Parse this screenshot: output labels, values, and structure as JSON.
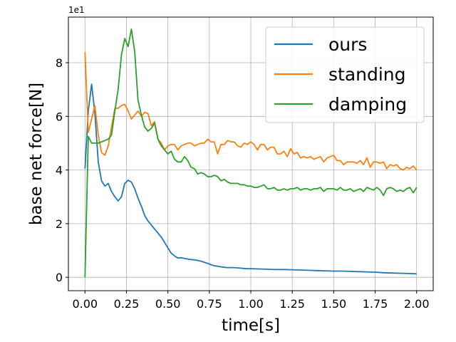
{
  "chart_data": {
    "type": "line",
    "xlabel": "time[s]",
    "ylabel": "base net force[N]",
    "y_offset_label": "1e1",
    "xlim": [
      -0.1,
      2.1
    ],
    "ylim": [
      -0.5,
      9.7
    ],
    "xticks": [
      0.0,
      0.25,
      0.5,
      0.75,
      1.0,
      1.25,
      1.5,
      1.75,
      2.0
    ],
    "xtick_labels": [
      "0.00",
      "0.25",
      "0.50",
      "0.75",
      "1.00",
      "1.25",
      "1.50",
      "1.75",
      "2.00"
    ],
    "yticks": [
      0,
      2,
      4,
      6,
      8
    ],
    "ytick_labels": [
      "0",
      "2",
      "4",
      "6",
      "8"
    ],
    "grid": true,
    "legend_position": "top-right",
    "series": [
      {
        "name": "ours",
        "color": "#1f77b4",
        "x": [
          0.0,
          0.02,
          0.04,
          0.06,
          0.08,
          0.1,
          0.12,
          0.14,
          0.16,
          0.18,
          0.2,
          0.22,
          0.24,
          0.26,
          0.28,
          0.3,
          0.32,
          0.34,
          0.36,
          0.38,
          0.4,
          0.42,
          0.44,
          0.46,
          0.48,
          0.5,
          0.52,
          0.54,
          0.56,
          0.58,
          0.6,
          0.62,
          0.64,
          0.66,
          0.68,
          0.7,
          0.72,
          0.74,
          0.76,
          0.78,
          0.8,
          0.82,
          0.84,
          0.86,
          0.88,
          0.9,
          0.92,
          0.94,
          0.96,
          0.98,
          1.0,
          1.05,
          1.1,
          1.15,
          1.2,
          1.25,
          1.3,
          1.35,
          1.4,
          1.45,
          1.5,
          1.55,
          1.6,
          1.65,
          1.7,
          1.75,
          1.8,
          1.85,
          1.9,
          1.95,
          2.0
        ],
        "y": [
          4.05,
          6.2,
          7.2,
          6.1,
          4.3,
          3.6,
          3.4,
          3.5,
          3.2,
          3.0,
          2.85,
          3.0,
          3.5,
          3.62,
          3.55,
          3.3,
          2.95,
          2.65,
          2.3,
          2.1,
          1.95,
          1.8,
          1.65,
          1.5,
          1.3,
          1.1,
          0.9,
          0.8,
          0.72,
          0.73,
          0.7,
          0.68,
          0.66,
          0.65,
          0.63,
          0.6,
          0.56,
          0.52,
          0.47,
          0.43,
          0.41,
          0.39,
          0.37,
          0.36,
          0.36,
          0.36,
          0.35,
          0.34,
          0.33,
          0.32,
          0.32,
          0.31,
          0.3,
          0.29,
          0.29,
          0.28,
          0.27,
          0.26,
          0.25,
          0.24,
          0.23,
          0.23,
          0.22,
          0.21,
          0.2,
          0.19,
          0.17,
          0.16,
          0.15,
          0.14,
          0.13
        ]
      },
      {
        "name": "standing",
        "color": "#ff7f0e",
        "x": [
          0.0,
          0.02,
          0.04,
          0.06,
          0.08,
          0.1,
          0.12,
          0.14,
          0.16,
          0.18,
          0.2,
          0.22,
          0.24,
          0.26,
          0.28,
          0.3,
          0.32,
          0.34,
          0.36,
          0.38,
          0.4,
          0.42,
          0.44,
          0.46,
          0.48,
          0.5,
          0.52,
          0.54,
          0.56,
          0.58,
          0.6,
          0.62,
          0.64,
          0.66,
          0.68,
          0.7,
          0.72,
          0.74,
          0.76,
          0.78,
          0.8,
          0.82,
          0.84,
          0.86,
          0.88,
          0.9,
          0.92,
          0.94,
          0.96,
          0.98,
          1.0,
          1.02,
          1.04,
          1.06,
          1.08,
          1.1,
          1.12,
          1.14,
          1.16,
          1.18,
          1.2,
          1.22,
          1.24,
          1.26,
          1.28,
          1.3,
          1.32,
          1.34,
          1.36,
          1.38,
          1.4,
          1.42,
          1.44,
          1.46,
          1.48,
          1.5,
          1.52,
          1.54,
          1.56,
          1.58,
          1.6,
          1.62,
          1.64,
          1.66,
          1.68,
          1.7,
          1.72,
          1.74,
          1.76,
          1.78,
          1.8,
          1.82,
          1.84,
          1.86,
          1.88,
          1.9,
          1.92,
          1.94,
          1.96,
          1.98,
          2.0
        ],
        "y": [
          8.4,
          5.4,
          5.9,
          6.4,
          5.3,
          4.65,
          4.55,
          4.9,
          5.6,
          6.3,
          6.3,
          6.4,
          6.45,
          6.2,
          5.9,
          6.05,
          6.2,
          6.0,
          6.15,
          6.1,
          5.65,
          5.8,
          5.15,
          5.0,
          4.75,
          4.9,
          4.95,
          4.95,
          4.75,
          4.9,
          4.95,
          5.0,
          5.0,
          4.9,
          4.95,
          5.0,
          5.0,
          5.15,
          5.05,
          5.05,
          4.6,
          4.95,
          4.95,
          5.1,
          5.05,
          5.05,
          4.9,
          4.85,
          5.0,
          4.95,
          5.05,
          4.95,
          4.75,
          4.95,
          4.95,
          4.75,
          4.85,
          4.85,
          4.6,
          4.6,
          4.7,
          4.5,
          4.8,
          4.6,
          4.65,
          4.45,
          4.5,
          4.45,
          4.5,
          4.4,
          4.45,
          4.5,
          4.3,
          4.45,
          4.5,
          4.55,
          4.35,
          4.35,
          4.2,
          4.3,
          4.3,
          4.3,
          4.25,
          4.35,
          4.2,
          4.45,
          4.1,
          4.3,
          4.3,
          4.25,
          4.3,
          4.05,
          4.2,
          4.15,
          4.2,
          4.05,
          4.0,
          4.1,
          4.05,
          4.15,
          4.0
        ]
      },
      {
        "name": "damping",
        "color": "#2ca02c",
        "x": [
          0.0,
          0.02,
          0.04,
          0.06,
          0.08,
          0.1,
          0.12,
          0.14,
          0.16,
          0.18,
          0.2,
          0.22,
          0.24,
          0.26,
          0.28,
          0.3,
          0.32,
          0.34,
          0.36,
          0.38,
          0.4,
          0.42,
          0.44,
          0.46,
          0.48,
          0.5,
          0.52,
          0.54,
          0.56,
          0.58,
          0.6,
          0.62,
          0.64,
          0.66,
          0.68,
          0.7,
          0.72,
          0.74,
          0.76,
          0.78,
          0.8,
          0.82,
          0.84,
          0.86,
          0.88,
          0.9,
          0.92,
          0.94,
          0.96,
          0.98,
          1.0,
          1.02,
          1.04,
          1.06,
          1.08,
          1.1,
          1.12,
          1.14,
          1.16,
          1.18,
          1.2,
          1.22,
          1.24,
          1.26,
          1.28,
          1.3,
          1.32,
          1.34,
          1.36,
          1.38,
          1.4,
          1.42,
          1.44,
          1.46,
          1.48,
          1.5,
          1.52,
          1.54,
          1.56,
          1.58,
          1.6,
          1.62,
          1.64,
          1.66,
          1.68,
          1.7,
          1.72,
          1.74,
          1.76,
          1.78,
          1.8,
          1.82,
          1.84,
          1.86,
          1.88,
          1.9,
          1.92,
          1.94,
          1.96,
          1.98,
          2.0
        ],
        "y": [
          0.0,
          5.25,
          5.0,
          5.0,
          5.0,
          5.05,
          5.1,
          5.15,
          5.3,
          6.2,
          7.0,
          8.3,
          8.9,
          8.6,
          9.25,
          8.4,
          6.6,
          6.05,
          5.6,
          5.45,
          5.55,
          5.75,
          5.15,
          4.9,
          4.75,
          4.6,
          4.7,
          4.4,
          4.3,
          4.3,
          4.5,
          4.35,
          4.1,
          4.05,
          3.85,
          3.9,
          3.85,
          3.75,
          3.75,
          3.8,
          3.75,
          3.6,
          3.65,
          3.55,
          3.5,
          3.5,
          3.5,
          3.45,
          3.45,
          3.4,
          3.4,
          3.35,
          3.35,
          3.4,
          3.45,
          3.3,
          3.3,
          3.35,
          3.25,
          3.25,
          3.3,
          3.25,
          3.3,
          3.3,
          3.35,
          3.25,
          3.3,
          3.3,
          3.25,
          3.3,
          3.3,
          3.35,
          3.2,
          3.3,
          3.3,
          3.3,
          3.25,
          3.35,
          3.25,
          3.25,
          3.3,
          3.2,
          3.25,
          3.3,
          3.2,
          3.35,
          3.3,
          3.25,
          3.35,
          3.25,
          3.05,
          3.3,
          3.35,
          3.3,
          3.2,
          3.25,
          3.2,
          3.3,
          3.35,
          3.15,
          3.35
        ]
      }
    ]
  }
}
